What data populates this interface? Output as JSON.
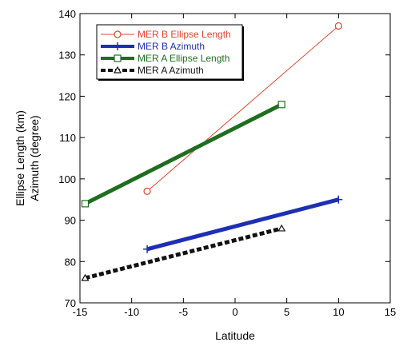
{
  "chart_data": {
    "type": "line",
    "xlabel": "Latitude",
    "ylabel_lines": [
      "Ellipse Length (km)",
      "Azimuth (degree)"
    ],
    "xlim": [
      -15,
      15
    ],
    "ylim": [
      70,
      140
    ],
    "xticks": [
      -15,
      -10,
      -5,
      0,
      5,
      10,
      15
    ],
    "yticks": [
      70,
      80,
      90,
      100,
      110,
      120,
      130,
      140
    ],
    "legend_position": "top-left",
    "series": [
      {
        "name": "MER B Ellipse Length",
        "color": "#e0462c",
        "line": "solid-thin",
        "marker": "circle",
        "x": [
          -8.5,
          10
        ],
        "y": [
          97,
          137
        ]
      },
      {
        "name": "MER B Azimuth",
        "color": "#1e2fb4",
        "line": "solid-thick",
        "marker": "plus",
        "x": [
          -8.5,
          10
        ],
        "y": [
          83,
          95
        ]
      },
      {
        "name": "MER A Ellipse Length",
        "color": "#1f6e1f",
        "line": "solid-thick",
        "marker": "square",
        "x": [
          -14.5,
          4.5
        ],
        "y": [
          94,
          118
        ]
      },
      {
        "name": "MER A Azimuth",
        "color": "#111111",
        "line": "dashed-thick",
        "marker": "triangle",
        "x": [
          -14.5,
          4.5
        ],
        "y": [
          76,
          88
        ]
      }
    ]
  }
}
